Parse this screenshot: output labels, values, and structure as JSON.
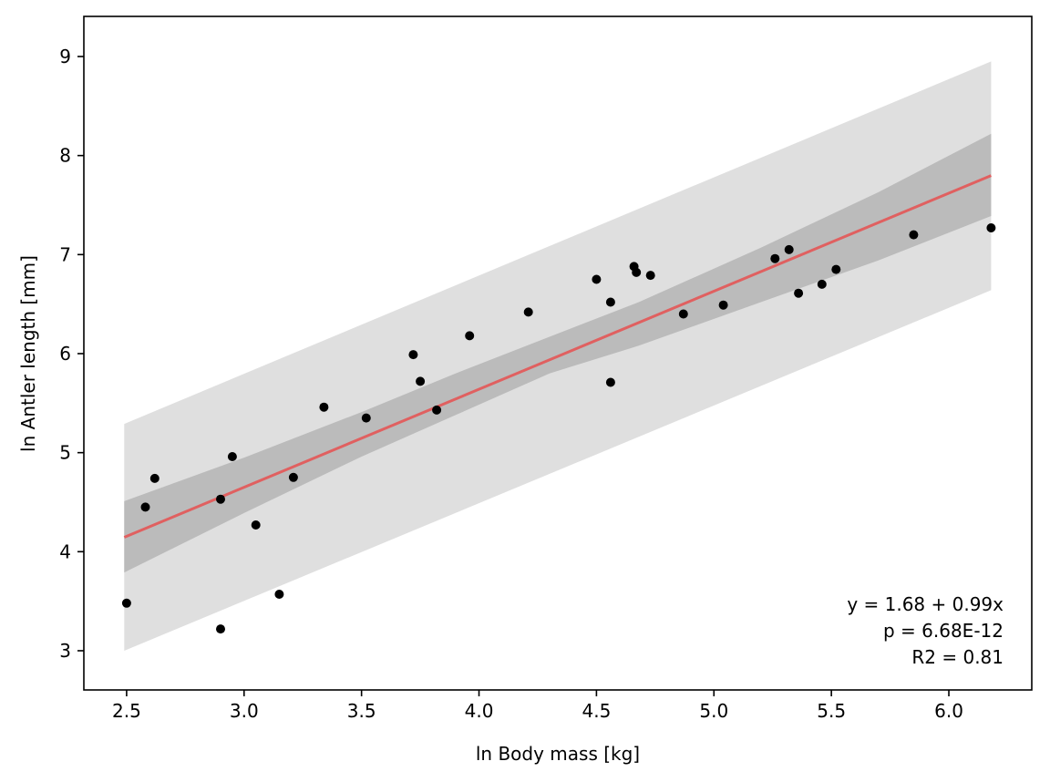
{
  "chart_data": {
    "type": "scatter",
    "title": "",
    "xlabel": "ln Body mass [kg]",
    "ylabel": "ln Antler length [mm]",
    "xlim": [
      2.318,
      6.353
    ],
    "ylim": [
      2.604,
      9.405
    ],
    "xticks": [
      2.5,
      3.0,
      3.5,
      4.0,
      4.5,
      5.0,
      5.5,
      6.0
    ],
    "xtick_labels": [
      "2.5",
      "3.0",
      "3.5",
      "4.0",
      "4.5",
      "5.0",
      "5.5",
      "6.0"
    ],
    "yticks": [
      3,
      4,
      5,
      6,
      7,
      8,
      9
    ],
    "ytick_labels": [
      "3",
      "4",
      "5",
      "6",
      "7",
      "8",
      "9"
    ],
    "grid": false,
    "series": [
      {
        "name": "observations",
        "type": "scatter",
        "color": "#000000",
        "points": [
          {
            "x": 2.5,
            "y": 3.48
          },
          {
            "x": 2.58,
            "y": 4.45
          },
          {
            "x": 2.62,
            "y": 4.74
          },
          {
            "x": 2.9,
            "y": 4.53
          },
          {
            "x": 2.9,
            "y": 3.22
          },
          {
            "x": 2.95,
            "y": 4.96
          },
          {
            "x": 3.05,
            "y": 4.27
          },
          {
            "x": 3.15,
            "y": 3.57
          },
          {
            "x": 3.21,
            "y": 4.75
          },
          {
            "x": 3.34,
            "y": 5.46
          },
          {
            "x": 3.52,
            "y": 5.35
          },
          {
            "x": 3.72,
            "y": 5.99
          },
          {
            "x": 3.75,
            "y": 5.72
          },
          {
            "x": 3.82,
            "y": 5.43
          },
          {
            "x": 3.96,
            "y": 6.18
          },
          {
            "x": 4.21,
            "y": 6.42
          },
          {
            "x": 4.5,
            "y": 6.75
          },
          {
            "x": 4.56,
            "y": 6.52
          },
          {
            "x": 4.56,
            "y": 5.71
          },
          {
            "x": 4.66,
            "y": 6.88
          },
          {
            "x": 4.67,
            "y": 6.82
          },
          {
            "x": 4.73,
            "y": 6.79
          },
          {
            "x": 4.87,
            "y": 6.4
          },
          {
            "x": 5.04,
            "y": 6.49
          },
          {
            "x": 5.26,
            "y": 6.96
          },
          {
            "x": 5.32,
            "y": 7.05
          },
          {
            "x": 5.36,
            "y": 6.61
          },
          {
            "x": 5.46,
            "y": 6.7
          },
          {
            "x": 5.52,
            "y": 6.85
          },
          {
            "x": 5.85,
            "y": 7.2
          },
          {
            "x": 6.18,
            "y": 7.27
          }
        ]
      },
      {
        "name": "regression line",
        "type": "line",
        "color": "#e06060",
        "intercept": 1.68,
        "slope": 0.99,
        "x_range": [
          2.49,
          6.18
        ]
      },
      {
        "name": "confidence band",
        "type": "area",
        "color": "#bbbbbb",
        "x": [
          2.49,
          3.0,
          3.5,
          3.9,
          4.3,
          4.68,
          5.2,
          5.7,
          6.18
        ],
        "lower": [
          3.79,
          4.39,
          4.96,
          5.38,
          5.8,
          6.08,
          6.52,
          6.94,
          7.39
        ],
        "upper": [
          4.51,
          4.95,
          5.41,
          5.8,
          6.17,
          6.52,
          7.07,
          7.63,
          8.22
        ]
      },
      {
        "name": "prediction band",
        "type": "area",
        "color": "#dfdfdf",
        "x": [
          2.49,
          6.18
        ],
        "lower": [
          3.0,
          6.64
        ],
        "upper": [
          5.29,
          8.95
        ]
      }
    ],
    "annotations": [
      "y = 1.68 + 0.99x",
      "p = 6.68E-12",
      "R2 = 0.81"
    ],
    "annotation_position": "bottom-right"
  }
}
